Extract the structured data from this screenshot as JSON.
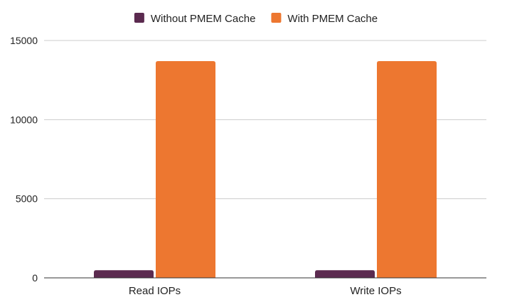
{
  "chart_data": {
    "type": "bar",
    "categories": [
      "Read IOPs",
      "Write IOPs"
    ],
    "series": [
      {
        "name": "Without PMEM Cache",
        "values": [
          480,
          480
        ],
        "color": "#5b2a4f"
      },
      {
        "name": "With PMEM Cache",
        "values": [
          13700,
          13700
        ],
        "color": "#ed7730"
      }
    ],
    "title": "",
    "xlabel": "",
    "ylabel": "",
    "ylim": [
      0,
      15000
    ],
    "yticks": [
      0,
      5000,
      10000,
      15000
    ],
    "grid": true,
    "legend_position": "top-center"
  }
}
